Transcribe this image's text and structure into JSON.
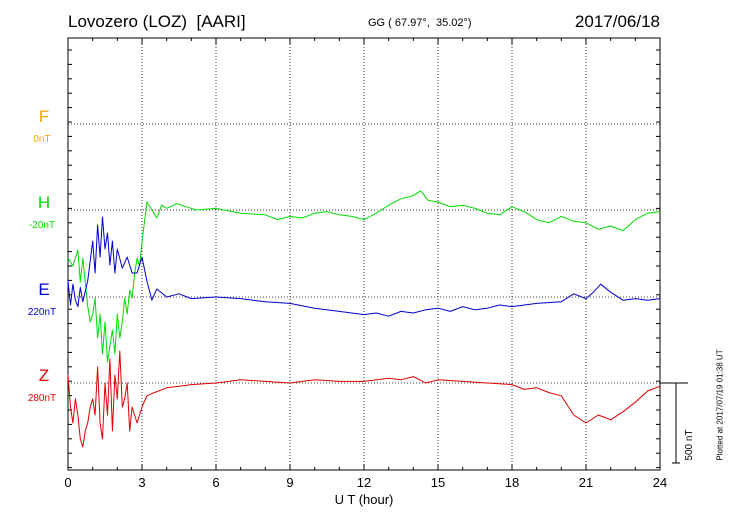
{
  "header": {
    "station": "Lovozero (LOZ)  [AARI]",
    "coords": "GG ( 67.97°,  35.02°)",
    "date": "2017/06/18"
  },
  "plotted_note": "Plotted at 2017/07/19 01:38 UT",
  "chart_data": {
    "type": "line",
    "xlabel": "U T (hour)",
    "xlim": [
      0,
      24
    ],
    "xticks": [
      0,
      3,
      6,
      9,
      12,
      15,
      18,
      21,
      24
    ],
    "scale_bar": "500 nT",
    "colors": {
      "F": "#f0a800",
      "H": "#00dd00",
      "E": "#0000cc",
      "Z": "#e00000"
    },
    "series": [
      {
        "name": "F",
        "baseline_label": "0nT",
        "color": "#f0a800",
        "x": [],
        "y": []
      },
      {
        "name": "H",
        "baseline_label": "-20nT",
        "color": "#00dd00",
        "x": [
          0,
          0.2,
          0.4,
          0.5,
          0.6,
          0.8,
          0.9,
          1.0,
          1.1,
          1.2,
          1.3,
          1.4,
          1.5,
          1.6,
          1.7,
          1.8,
          1.9,
          2.0,
          2.1,
          2.2,
          2.3,
          2.4,
          2.5,
          2.6,
          2.7,
          2.8,
          2.9,
          3.0,
          3.2,
          3.4,
          3.6,
          3.8,
          4.0,
          4.4,
          4.8,
          5.2,
          6.0,
          7.0,
          8.0,
          8.5,
          9.0,
          9.5,
          10.0,
          10.5,
          11.0,
          11.5,
          12.0,
          12.5,
          13.0,
          13.5,
          14.0,
          14.3,
          14.6,
          15.0,
          15.5,
          16.0,
          16.5,
          17.0,
          17.5,
          18.0,
          18.5,
          19.0,
          19.5,
          20.0,
          20.5,
          21.0,
          21.5,
          22.0,
          22.5,
          23.0,
          23.5,
          24.0
        ],
        "y": [
          -300,
          -350,
          -250,
          -450,
          -300,
          -600,
          -700,
          -650,
          -550,
          -800,
          -650,
          -900,
          -700,
          -950,
          -850,
          -750,
          -900,
          -650,
          -800,
          -700,
          -550,
          -650,
          -500,
          -550,
          -400,
          -300,
          -350,
          -200,
          50,
          0,
          -50,
          30,
          10,
          40,
          20,
          0,
          10,
          -20,
          -30,
          -60,
          -40,
          -50,
          -20,
          -10,
          -30,
          -40,
          -60,
          -20,
          30,
          70,
          90,
          120,
          60,
          50,
          20,
          30,
          10,
          -20,
          -30,
          20,
          -10,
          -60,
          -80,
          -40,
          -70,
          -80,
          -120,
          -100,
          -130,
          -60,
          -20,
          -10
        ]
      },
      {
        "name": "E",
        "baseline_label": "220nT",
        "color": "#0000cc",
        "x": [
          0,
          0.1,
          0.2,
          0.3,
          0.4,
          0.5,
          0.6,
          0.8,
          1.0,
          1.1,
          1.2,
          1.3,
          1.4,
          1.5,
          1.6,
          1.7,
          1.8,
          1.9,
          2.0,
          2.2,
          2.4,
          2.6,
          2.8,
          3.0,
          3.2,
          3.4,
          3.6,
          4.0,
          4.5,
          5.0,
          6.0,
          7.0,
          8.0,
          9.0,
          10.0,
          11.0,
          12.0,
          12.5,
          13.0,
          13.5,
          14.0,
          14.5,
          15.0,
          15.5,
          16.0,
          16.5,
          17.0,
          17.5,
          18.0,
          19.0,
          20.0,
          20.5,
          21.0,
          21.3,
          21.6,
          22.0,
          22.5,
          23.0,
          23.5,
          24.0
        ],
        "y": [
          100,
          -50,
          80,
          -20,
          -60,
          60,
          -30,
          100,
          350,
          150,
          450,
          250,
          500,
          300,
          400,
          200,
          350,
          150,
          300,
          180,
          250,
          150,
          150,
          250,
          100,
          -20,
          50,
          0,
          20,
          -10,
          0,
          -10,
          -30,
          -40,
          -70,
          -90,
          -110,
          -100,
          -120,
          -90,
          -100,
          -80,
          -70,
          -90,
          -60,
          -80,
          -70,
          -50,
          -60,
          -40,
          -30,
          20,
          -10,
          30,
          80,
          30,
          -20,
          -10,
          -20,
          -10
        ]
      },
      {
        "name": "Z",
        "baseline_label": "280nT",
        "color": "#e00000",
        "x": [
          0,
          0.1,
          0.2,
          0.3,
          0.4,
          0.5,
          0.6,
          0.7,
          0.8,
          0.9,
          1.0,
          1.1,
          1.2,
          1.3,
          1.4,
          1.5,
          1.6,
          1.7,
          1.8,
          1.9,
          2.0,
          2.1,
          2.2,
          2.3,
          2.4,
          2.5,
          2.6,
          2.7,
          2.8,
          2.9,
          3.0,
          3.2,
          3.5,
          4.0,
          4.5,
          5.0,
          6.0,
          7.0,
          8.0,
          9.0,
          10.0,
          11.0,
          12.0,
          13.0,
          13.5,
          14.0,
          14.5,
          15.0,
          16.0,
          17.0,
          18.0,
          18.5,
          19.0,
          19.5,
          20.0,
          20.5,
          21.0,
          21.5,
          22.0,
          22.5,
          23.0,
          23.5,
          24.0
        ],
        "y": [
          50,
          -150,
          -250,
          -100,
          -200,
          -350,
          -400,
          -300,
          -250,
          -150,
          -100,
          -200,
          100,
          -250,
          -350,
          0,
          -200,
          150,
          -300,
          50,
          -100,
          200,
          -150,
          -100,
          0,
          -300,
          -150,
          -200,
          -250,
          -200,
          -150,
          -80,
          -60,
          -30,
          -20,
          -10,
          0,
          20,
          10,
          0,
          20,
          10,
          10,
          30,
          20,
          40,
          0,
          20,
          10,
          0,
          -10,
          -40,
          -30,
          -60,
          -80,
          -200,
          -250,
          -200,
          -230,
          -180,
          -120,
          -50,
          -20
        ]
      }
    ]
  }
}
